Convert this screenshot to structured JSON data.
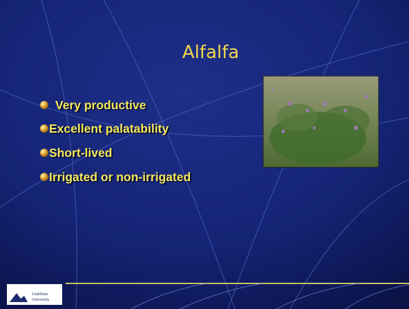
{
  "slide": {
    "title": "Alfalfa",
    "bullets": [
      "Very productive",
      "Excellent palatability",
      "Short-lived",
      "Irrigated or non-irrigated"
    ],
    "logo": [
      "UtahState",
      "University"
    ]
  }
}
